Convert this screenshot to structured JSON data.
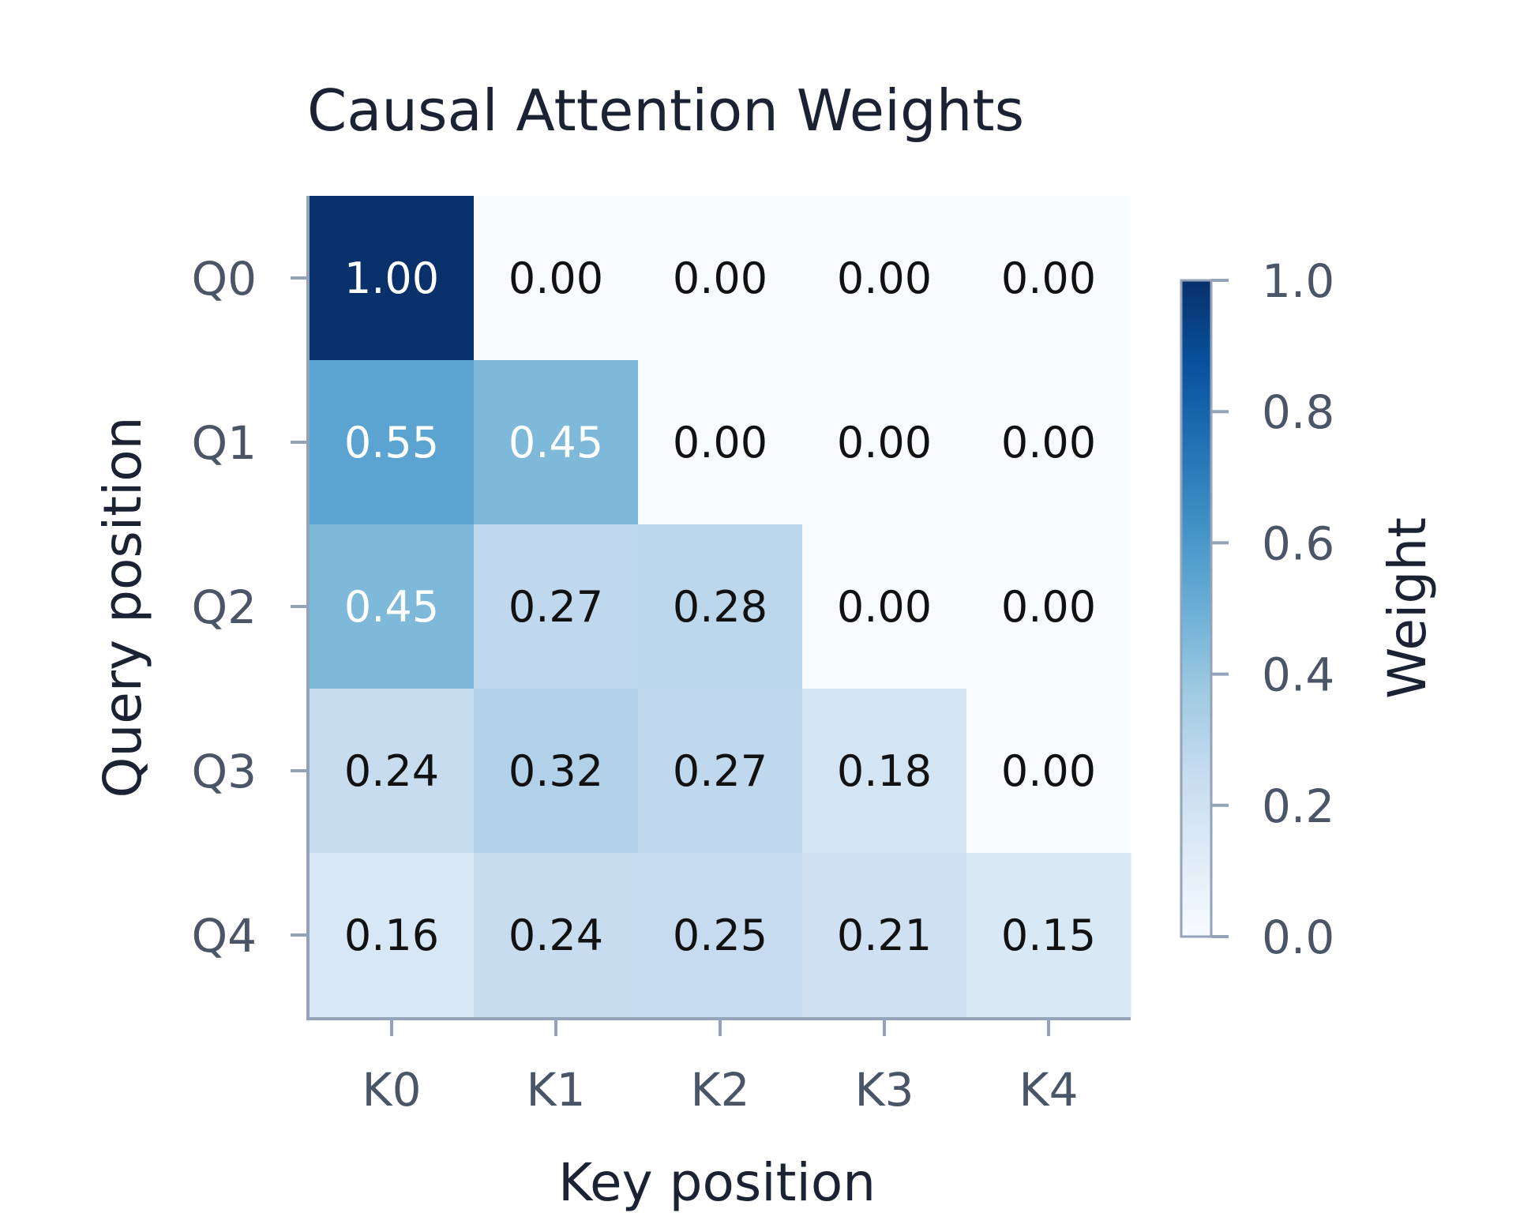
{
  "chart_data": {
    "type": "heatmap",
    "title": "Causal Attention Weights",
    "xlabel": "Key position",
    "ylabel": "Query position",
    "x_categories": [
      "K0",
      "K1",
      "K2",
      "K3",
      "K4"
    ],
    "y_categories": [
      "Q0",
      "Q1",
      "Q2",
      "Q3",
      "Q4"
    ],
    "values": [
      [
        1.0,
        0.0,
        0.0,
        0.0,
        0.0
      ],
      [
        0.55,
        0.45,
        0.0,
        0.0,
        0.0
      ],
      [
        0.45,
        0.27,
        0.28,
        0.0,
        0.0
      ],
      [
        0.24,
        0.32,
        0.27,
        0.18,
        0.0
      ],
      [
        0.16,
        0.24,
        0.25,
        0.21,
        0.15
      ]
    ],
    "value_labels": [
      [
        "1.00",
        "0.00",
        "0.00",
        "0.00",
        "0.00"
      ],
      [
        "0.55",
        "0.45",
        "0.00",
        "0.00",
        "0.00"
      ],
      [
        "0.45",
        "0.27",
        "0.28",
        "0.00",
        "0.00"
      ],
      [
        "0.24",
        "0.32",
        "0.27",
        "0.18",
        "0.00"
      ],
      [
        "0.16",
        "0.24",
        "0.25",
        "0.21",
        "0.15"
      ]
    ],
    "colorbar": {
      "label": "Weight",
      "range": [
        0.0,
        1.0
      ],
      "ticks": [
        "0.0",
        "0.2",
        "0.4",
        "0.6",
        "0.8",
        "1.0"
      ]
    },
    "colormap": "Blues",
    "colors": {
      "low": "#f7fbff",
      "high": "#08306b",
      "dark_text": "#111111",
      "light_text": "#ffffff",
      "axis": "#94a3b8"
    },
    "grid": false
  }
}
